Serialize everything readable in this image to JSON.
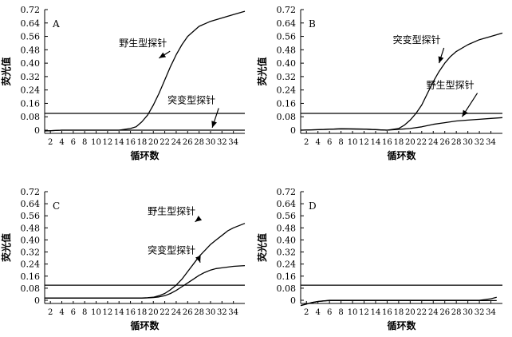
{
  "chart_data": [
    {
      "type": "line",
      "panel_label": "A",
      "xlabel": "循环数",
      "ylabel": "荧光值",
      "xlim": [
        1,
        36
      ],
      "ylim": [
        0,
        0.72
      ],
      "xticks": [
        2,
        4,
        6,
        8,
        10,
        12,
        14,
        16,
        18,
        20,
        22,
        24,
        26,
        28,
        30,
        32,
        34
      ],
      "yticks": [
        "0",
        "0.08",
        "0.16",
        "0.24",
        "0.32",
        "0.40",
        "0.48",
        "0.56",
        "0.64",
        "0.72"
      ],
      "threshold": 0.1,
      "series": [
        {
          "name": "野生型探针",
          "x": [
            1,
            4,
            10,
            14,
            16,
            17,
            18,
            19,
            20,
            21,
            22,
            23,
            24,
            25,
            26,
            27,
            28,
            30,
            32,
            34,
            36
          ],
          "y": [
            -0.005,
            0.0,
            0.0,
            0.0,
            0.01,
            0.02,
            0.05,
            0.09,
            0.15,
            0.22,
            0.3,
            0.38,
            0.45,
            0.51,
            0.56,
            0.59,
            0.62,
            0.65,
            0.67,
            0.69,
            0.71
          ]
        },
        {
          "name": "突变型探针",
          "x": [
            1,
            4,
            10,
            15,
            20,
            25,
            30,
            36
          ],
          "y": [
            -0.005,
            0.0,
            0.0,
            0.0,
            0.0,
            0.0,
            0.0,
            0.0
          ]
        }
      ],
      "annotations": [
        {
          "text": "野生型探针",
          "x": 14,
          "y": 0.5,
          "arrow_to": [
            21,
            0.43
          ]
        },
        {
          "text": "突变型探针",
          "x": 22.5,
          "y": 0.16,
          "arrow_to": [
            30.3,
            0.015
          ]
        }
      ]
    },
    {
      "type": "line",
      "panel_label": "B",
      "xlabel": "循环数",
      "ylabel": "荧光值",
      "xlim": [
        1,
        36
      ],
      "ylim": [
        0,
        0.72
      ],
      "xticks": [
        2,
        4,
        6,
        8,
        10,
        12,
        14,
        16,
        18,
        20,
        22,
        24,
        26,
        28,
        30,
        32,
        34
      ],
      "yticks": [
        "0",
        "0.08",
        "0.16",
        "0.24",
        "0.32",
        "0.40",
        "0.48",
        "0.56",
        "0.64",
        "0.72"
      ],
      "threshold": 0.1,
      "series": [
        {
          "name": "突变型探针",
          "x": [
            1,
            4,
            8,
            12,
            16,
            18,
            19,
            20,
            21,
            22,
            23,
            24,
            25,
            26,
            27,
            28,
            30,
            32,
            34,
            36
          ],
          "y": [
            0.0,
            0.003,
            0.008,
            0.006,
            0.0,
            0.01,
            0.03,
            0.06,
            0.1,
            0.15,
            0.22,
            0.29,
            0.35,
            0.4,
            0.44,
            0.47,
            0.51,
            0.54,
            0.56,
            0.58
          ]
        },
        {
          "name": "野生型探针",
          "x": [
            1,
            4,
            8,
            12,
            16,
            18,
            20,
            22,
            24,
            26,
            28,
            30,
            32,
            34,
            36
          ],
          "y": [
            0.0,
            0.003,
            0.008,
            0.006,
            0.0,
            0.005,
            0.01,
            0.02,
            0.035,
            0.045,
            0.055,
            0.06,
            0.065,
            0.07,
            0.075
          ]
        }
      ],
      "annotations": [
        {
          "text": "突变型探针",
          "x": 17,
          "y": 0.52,
          "arrow_to": [
            25,
            0.4
          ]
        },
        {
          "text": "野生型探针",
          "x": 22.8,
          "y": 0.25,
          "arrow_to": [
            29,
            0.08
          ]
        }
      ]
    },
    {
      "type": "line",
      "panel_label": "C",
      "xlabel": "循环数",
      "ylabel": "荧光值",
      "xlim": [
        1,
        36
      ],
      "ylim": [
        0,
        0.72
      ],
      "xticks": [
        2,
        4,
        6,
        8,
        10,
        12,
        14,
        16,
        18,
        20,
        22,
        24,
        26,
        28,
        30,
        32,
        34
      ],
      "yticks": [
        "0",
        "0.08",
        "0.16",
        "0.24",
        "0.32",
        "0.40",
        "0.48",
        "0.56",
        "0.64",
        "0.72"
      ],
      "threshold": 0.1,
      "series": [
        {
          "name": "野生型探针",
          "x": [
            1,
            6,
            12,
            18,
            19,
            20,
            21,
            22,
            23,
            24,
            25,
            26,
            27,
            28,
            29,
            30,
            31,
            32,
            33,
            34,
            36
          ],
          "y": [
            0.015,
            0.015,
            0.015,
            0.015,
            0.017,
            0.02,
            0.03,
            0.045,
            0.07,
            0.1,
            0.14,
            0.19,
            0.24,
            0.29,
            0.33,
            0.37,
            0.4,
            0.43,
            0.46,
            0.48,
            0.51
          ]
        },
        {
          "name": "突变型探针",
          "x": [
            1,
            6,
            12,
            18,
            19,
            20,
            21,
            22,
            23,
            24,
            25,
            26,
            27,
            28,
            29,
            30,
            31,
            32,
            34,
            36
          ],
          "y": [
            0.015,
            0.015,
            0.015,
            0.015,
            0.016,
            0.018,
            0.022,
            0.03,
            0.045,
            0.065,
            0.09,
            0.115,
            0.14,
            0.165,
            0.185,
            0.2,
            0.21,
            0.215,
            0.225,
            0.23
          ]
        }
      ],
      "annotations": [
        {
          "text": "野生型探针",
          "x": 19,
          "y": 0.57,
          "arrow_to": [
            27.3,
            0.52
          ]
        },
        {
          "text": "突变型探针",
          "x": 19,
          "y": 0.31,
          "arrow_to": [
            28.2,
            0.25
          ]
        }
      ]
    },
    {
      "type": "line",
      "panel_label": "D",
      "xlabel": "循环数",
      "ylabel": "荧光值",
      "xlim": [
        1,
        36
      ],
      "ylim": [
        0,
        0.72
      ],
      "xticks": [
        2,
        4,
        6,
        8,
        10,
        12,
        14,
        16,
        18,
        20,
        22,
        24,
        26,
        28,
        30,
        32,
        34
      ],
      "yticks": [
        "0",
        "0.08",
        "0.16",
        "0.24",
        "0.32",
        "0.40",
        "0.48",
        "0.56",
        "0.64",
        "0.72"
      ],
      "threshold": 0.1,
      "series": [
        {
          "name": "",
          "x": [
            1,
            2,
            3,
            4,
            5,
            6,
            10,
            20,
            30,
            32,
            33,
            34,
            35
          ],
          "y": [
            -0.035,
            -0.025,
            -0.015,
            -0.008,
            -0.004,
            0.0,
            0.0,
            0.0,
            0.0,
            0.0,
            0.005,
            0.01,
            0.02
          ]
        },
        {
          "name": "",
          "x": [
            1,
            2,
            3,
            4,
            5,
            6,
            10,
            20,
            30,
            33,
            35
          ],
          "y": [
            -0.035,
            -0.025,
            -0.015,
            -0.008,
            -0.004,
            -0.002,
            -0.002,
            -0.002,
            -0.002,
            -0.002,
            -0.002
          ]
        }
      ],
      "annotations": []
    }
  ]
}
